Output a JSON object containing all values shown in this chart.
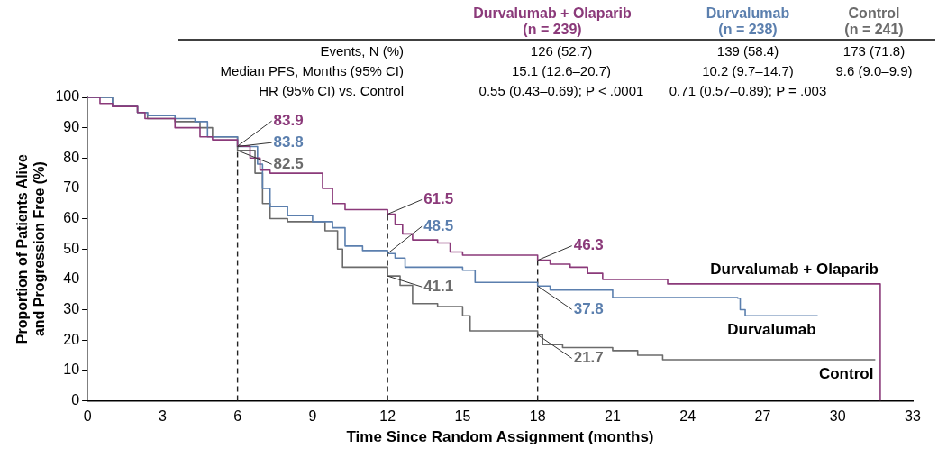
{
  "chart_data": {
    "type": "step",
    "xlabel": "Time Since Random Assignment (months)",
    "ylabel": "Proportion of Patients Alive\nand Progression Free (%)",
    "xlim": [
      0,
      33
    ],
    "xticks": [
      0,
      3,
      6,
      9,
      12,
      15,
      18,
      21,
      24,
      27,
      30,
      33
    ],
    "ylim": [
      0,
      100
    ],
    "yticks": [
      0,
      10,
      20,
      30,
      40,
      50,
      60,
      70,
      80,
      90,
      100
    ],
    "grid": false,
    "legend": false,
    "line_style": "solid",
    "marker": "none",
    "series": [
      {
        "name": "Durvalumab + Olaparib",
        "color": "#8b3a7a",
        "x": [
          0,
          0.5,
          1,
          2,
          2.3,
          3.5,
          4.5,
          5,
          6,
          6.5,
          6.9,
          7.3,
          9.4,
          9.8,
          10.3,
          12,
          12.3,
          12.6,
          13,
          14,
          14.5,
          15,
          18,
          18.5,
          19.3,
          20,
          20.6,
          23.2,
          31.7,
          31.7
        ],
        "values": [
          100,
          98,
          97,
          95,
          93,
          90,
          87,
          86,
          83.9,
          80,
          76,
          75,
          70,
          65,
          63,
          61.5,
          58,
          55,
          53,
          52,
          49,
          48,
          46.3,
          45,
          44,
          42,
          40,
          38.5,
          38.5,
          0
        ]
      },
      {
        "name": "Durvalumab",
        "color": "#5b7fae",
        "x": [
          0,
          1,
          2,
          2.4,
          3.5,
          4.3,
          4.8,
          6,
          6.8,
          7,
          7.3,
          8,
          9,
          9.8,
          10.3,
          11,
          12,
          12.3,
          12.7,
          15,
          15.5,
          18,
          18.5,
          21,
          26,
          26.1,
          26.3,
          29.2
        ],
        "values": [
          100,
          97,
          95,
          94,
          93,
          92,
          87,
          83.8,
          78,
          70,
          64,
          61,
          59,
          57,
          51,
          49.5,
          48.5,
          47,
          44,
          43,
          39,
          37.8,
          36.5,
          34,
          33.8,
          30,
          28,
          28
        ]
      },
      {
        "name": "Control",
        "color": "#6b6b6b",
        "x": [
          0,
          1,
          2,
          2.4,
          3.5,
          4.5,
          5,
          6,
          6.7,
          7,
          7.3,
          8,
          9.5,
          10,
          10.2,
          12,
          12.5,
          13,
          14,
          15,
          15.3,
          18,
          18.2,
          19,
          21,
          22,
          23,
          31.5
        ],
        "values": [
          100,
          97,
          95,
          93,
          92,
          90,
          87,
          82.5,
          75,
          65,
          60,
          59,
          56,
          50,
          44,
          41.1,
          38,
          32,
          31,
          28,
          23,
          21.7,
          18.5,
          17.5,
          16.5,
          15,
          13.5,
          13.5
        ]
      }
    ],
    "ref_lines": [
      {
        "axis": "x",
        "value": 6,
        "line_style": "dashed",
        "color": "#222222"
      },
      {
        "axis": "x",
        "value": 12,
        "line_style": "dashed",
        "color": "#222222"
      },
      {
        "axis": "x",
        "value": 18,
        "line_style": "dashed",
        "color": "#222222"
      }
    ],
    "annotations": [
      "Durvalumab + Olaparib\n(n = 239)",
      "Durvalumab\n(n = 238)",
      "Control\n(n = 241)",
      "Events, N (%)",
      "126 (52.7)",
      "139 (58.4)",
      "173 (71.8)",
      "Median PFS, Months (95% CI)",
      "15.1 (12.6–20.7)",
      "10.2 (9.7–14.7)",
      "9.6 (9.0–9.9)",
      "HR (95% CI) vs. Control",
      "0.55 (0.43–0.69); P < .0001",
      "0.71 (0.57–0.89); P = .003",
      {
        "text": "83.9",
        "x": 6,
        "y": 83.9
      },
      {
        "text": "83.8",
        "x": 6,
        "y": 83.8
      },
      {
        "text": "82.5",
        "x": 6,
        "y": 82.5
      },
      {
        "text": "61.5",
        "x": 12,
        "y": 61.5
      },
      {
        "text": "48.5",
        "x": 12,
        "y": 48.5
      },
      {
        "text": "41.1",
        "x": 12,
        "y": 41.1
      },
      {
        "text": "46.3",
        "x": 18,
        "y": 46.3
      },
      {
        "text": "37.8",
        "x": 18,
        "y": 37.8
      },
      {
        "text": "21.7",
        "x": 18,
        "y": 21.7
      }
    ]
  }
}
